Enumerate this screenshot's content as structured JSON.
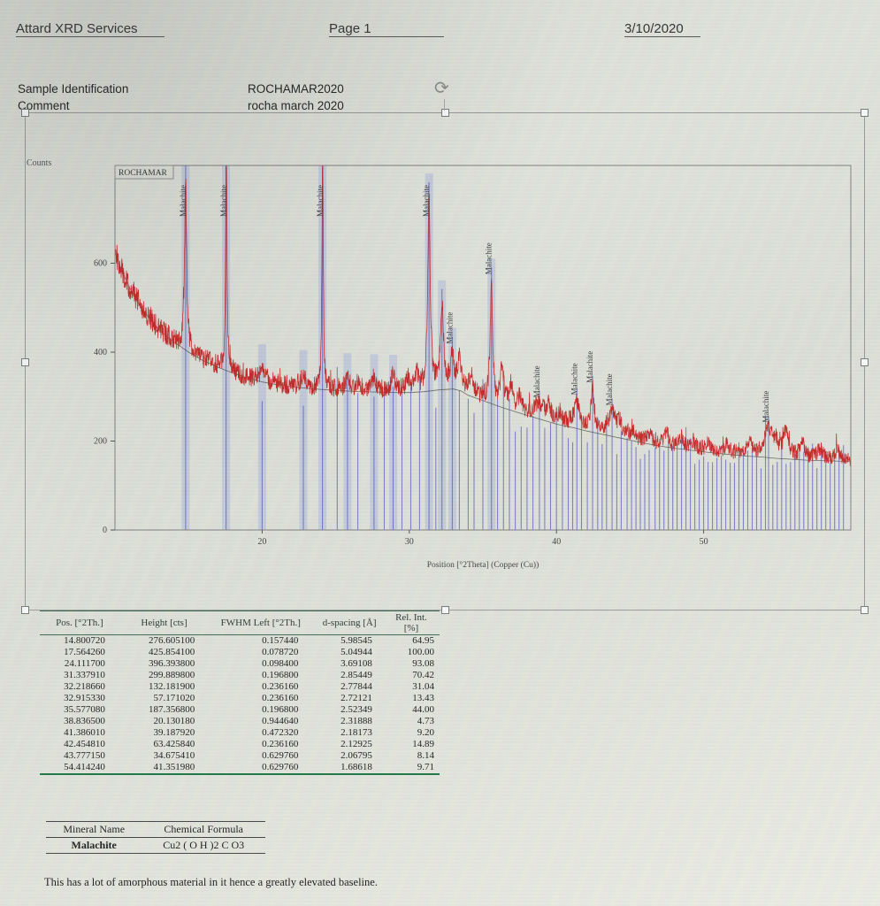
{
  "header": {
    "company": "Attard XRD Services",
    "page": "Page 1",
    "date": "3/10/2020"
  },
  "sample": {
    "id_label": "Sample Identification",
    "id_value": "ROCHAMAR2020",
    "comment_label": "Comment",
    "comment_value": "rocha march 2020"
  },
  "icons": {
    "rotate": "⟳"
  },
  "chart_data": {
    "type": "line",
    "title": "ROCHAMAR",
    "ylabel": "Counts",
    "xlabel": "Position [°2Theta] (Copper (Cu))",
    "x_range": [
      10,
      60
    ],
    "y_range": [
      0,
      820
    ],
    "x_ticks": [
      20,
      30,
      40,
      50
    ],
    "y_ticks": [
      0,
      200,
      400,
      600
    ],
    "series_color": "#c62828",
    "reference_color": "#4d4dbb",
    "band_color": "#a9b6dd",
    "background_curve_color": "#555555",
    "peaks": [
      {
        "pos": 14.80072,
        "height": 276.6051,
        "fwhm": 0.15744,
        "label": "Malachite",
        "labeled": true
      },
      {
        "pos": 17.56426,
        "height": 425.8541,
        "fwhm": 0.07872,
        "label": "Malachite",
        "labeled": true
      },
      {
        "pos": 24.1117,
        "height": 396.3938,
        "fwhm": 0.0984,
        "label": "Malachite",
        "labeled": true
      },
      {
        "pos": 31.33791,
        "height": 299.8898,
        "fwhm": 0.1968,
        "label": "Malachite",
        "labeled": true
      },
      {
        "pos": 32.21866,
        "height": 132.1819,
        "fwhm": 0.23616,
        "label": "Malachite",
        "labeled": false
      },
      {
        "pos": 32.91533,
        "height": 57.17102,
        "fwhm": 0.23616,
        "label": "Malachite",
        "labeled": true
      },
      {
        "pos": 35.57708,
        "height": 187.3568,
        "fwhm": 0.1968,
        "label": "Malachite",
        "labeled": true
      },
      {
        "pos": 38.8365,
        "height": 20.13018,
        "fwhm": 0.94464,
        "label": "Malachite",
        "labeled": true
      },
      {
        "pos": 41.38601,
        "height": 39.18792,
        "fwhm": 0.47232,
        "label": "Malachite",
        "labeled": true
      },
      {
        "pos": 42.45481,
        "height": 63.42584,
        "fwhm": 0.23616,
        "label": "Malachite",
        "labeled": true
      },
      {
        "pos": 43.77715,
        "height": 34.67541,
        "fwhm": 0.62976,
        "label": "Malachite",
        "labeled": true
      },
      {
        "pos": 54.41424,
        "height": 41.35198,
        "fwhm": 0.62976,
        "label": "Malachite",
        "labeled": true
      }
    ],
    "minor_peaks": [
      {
        "pos": 20.0,
        "h": 28,
        "w": 0.3
      },
      {
        "pos": 22.8,
        "h": 20,
        "w": 0.35
      },
      {
        "pos": 25.8,
        "h": 16,
        "w": 0.35
      },
      {
        "pos": 26.5,
        "h": 14,
        "w": 0.3
      },
      {
        "pos": 27.6,
        "h": 22,
        "w": 0.35
      },
      {
        "pos": 28.9,
        "h": 26,
        "w": 0.3
      },
      {
        "pos": 29.9,
        "h": 20,
        "w": 0.3
      },
      {
        "pos": 30.5,
        "h": 25,
        "w": 0.25
      },
      {
        "pos": 33.4,
        "h": 45,
        "w": 0.3
      },
      {
        "pos": 34.2,
        "h": 30,
        "w": 0.35
      },
      {
        "pos": 36.3,
        "h": 60,
        "w": 0.25
      },
      {
        "pos": 36.9,
        "h": 35,
        "w": 0.3
      },
      {
        "pos": 37.5,
        "h": 20,
        "w": 0.3
      },
      {
        "pos": 39.5,
        "h": 18,
        "w": 0.3
      },
      {
        "pos": 40.2,
        "h": 15,
        "w": 0.3
      },
      {
        "pos": 44.3,
        "h": 18,
        "w": 0.3
      },
      {
        "pos": 45.2,
        "h": 15,
        "w": 0.35
      },
      {
        "pos": 46.3,
        "h": 12,
        "w": 0.35
      },
      {
        "pos": 47.5,
        "h": 20,
        "w": 0.35
      },
      {
        "pos": 48.5,
        "h": 15,
        "w": 0.35
      },
      {
        "pos": 49.3,
        "h": 12,
        "w": 0.3
      },
      {
        "pos": 50.3,
        "h": 14,
        "w": 0.35
      },
      {
        "pos": 51.6,
        "h": 12,
        "w": 0.35
      },
      {
        "pos": 53.1,
        "h": 20,
        "w": 0.4
      },
      {
        "pos": 54.9,
        "h": 18,
        "w": 0.35
      },
      {
        "pos": 55.6,
        "h": 40,
        "w": 0.4
      },
      {
        "pos": 56.7,
        "h": 22,
        "w": 0.4
      },
      {
        "pos": 57.9,
        "h": 16,
        "w": 0.4
      },
      {
        "pos": 59.1,
        "h": 14,
        "w": 0.4
      }
    ],
    "baseline_points": [
      [
        10,
        640
      ],
      [
        10.5,
        595
      ],
      [
        11,
        560
      ],
      [
        11.5,
        530
      ],
      [
        12,
        505
      ],
      [
        13,
        465
      ],
      [
        14,
        438
      ],
      [
        15,
        415
      ],
      [
        16,
        396
      ],
      [
        17,
        381
      ],
      [
        18,
        368
      ],
      [
        19,
        357
      ],
      [
        20,
        348
      ],
      [
        21,
        342
      ],
      [
        22,
        337
      ],
      [
        23,
        334
      ],
      [
        24,
        331
      ],
      [
        25,
        329
      ],
      [
        26,
        327
      ],
      [
        27,
        326
      ],
      [
        28,
        325
      ],
      [
        29,
        324
      ],
      [
        30,
        324
      ],
      [
        31,
        326
      ],
      [
        32,
        330
      ],
      [
        33,
        332
      ],
      [
        33.5,
        328
      ],
      [
        34,
        318
      ],
      [
        35,
        306
      ],
      [
        36,
        294
      ],
      [
        37,
        283
      ],
      [
        38,
        273
      ],
      [
        39,
        263
      ],
      [
        40,
        253
      ],
      [
        41,
        246
      ],
      [
        42,
        238
      ],
      [
        43,
        231
      ],
      [
        44,
        224
      ],
      [
        45,
        217
      ],
      [
        46,
        210
      ],
      [
        47,
        204
      ],
      [
        48,
        199
      ],
      [
        49,
        195
      ],
      [
        50,
        191
      ],
      [
        51,
        187
      ],
      [
        52,
        184
      ],
      [
        53,
        181
      ],
      [
        54,
        179
      ],
      [
        55,
        176
      ],
      [
        56,
        174
      ],
      [
        57,
        172
      ],
      [
        58,
        171
      ],
      [
        59,
        170
      ],
      [
        60,
        169
      ]
    ],
    "reference_lines": [
      14.8,
      17.55,
      20.0,
      22.8,
      24.1,
      25.1,
      25.8,
      26.5,
      27.6,
      28.3,
      28.9,
      29.5,
      30.1,
      30.7,
      31.34,
      31.8,
      32.22,
      32.92,
      33.4,
      34.0,
      34.4,
      35.0,
      35.58,
      36.0,
      36.4,
      36.8,
      37.2,
      37.6,
      38.0,
      38.4,
      38.84,
      39.2,
      39.6,
      40.0,
      40.4,
      40.8,
      41.1,
      41.39,
      41.7,
      42.1,
      42.45,
      42.8,
      43.1,
      43.4,
      43.78,
      44.1,
      44.4,
      44.8,
      45.1,
      45.4,
      45.7,
      46.0,
      46.3,
      46.7,
      47.0,
      47.3,
      47.6,
      47.9,
      48.2,
      48.5,
      48.8,
      49.1,
      49.4,
      49.7,
      50.0,
      50.3,
      50.6,
      50.9,
      51.2,
      51.5,
      51.8,
      52.1,
      52.4,
      52.7,
      53.0,
      53.3,
      53.6,
      53.9,
      54.2,
      54.41,
      54.7,
      55.0,
      55.3,
      55.6,
      55.9,
      56.2,
      56.5,
      56.8,
      57.1,
      57.4,
      57.7,
      58.0,
      58.3,
      58.6,
      58.9,
      59.2,
      59.5
    ],
    "bands": [
      14.8,
      17.55,
      20.0,
      22.8,
      24.1,
      25.8,
      27.6,
      28.9,
      31.34,
      32.22,
      32.92,
      35.58
    ]
  },
  "peak_table": {
    "columns": [
      "Pos. [°2Th.]",
      "Height [cts]",
      "FWHM Left [°2Th.]",
      "d-spacing [Å]",
      "Rel. Int. [%]"
    ],
    "rows": [
      [
        "14.800720",
        "276.605100",
        "0.157440",
        "5.98545",
        "64.95"
      ],
      [
        "17.564260",
        "425.854100",
        "0.078720",
        "5.04944",
        "100.00"
      ],
      [
        "24.111700",
        "396.393800",
        "0.098400",
        "3.69108",
        "93.08"
      ],
      [
        "31.337910",
        "299.889800",
        "0.196800",
        "2.85449",
        "70.42"
      ],
      [
        "32.218660",
        "132.181900",
        "0.236160",
        "2.77844",
        "31.04"
      ],
      [
        "32.915330",
        "57.171020",
        "0.236160",
        "2.72121",
        "13.43"
      ],
      [
        "35.577080",
        "187.356800",
        "0.196800",
        "2.52349",
        "44.00"
      ],
      [
        "38.836500",
        "20.130180",
        "0.944640",
        "2.31888",
        "4.73"
      ],
      [
        "41.386010",
        "39.187920",
        "0.472320",
        "2.18173",
        "9.20"
      ],
      [
        "42.454810",
        "63.425840",
        "0.236160",
        "2.12925",
        "14.89"
      ],
      [
        "43.777150",
        "34.675410",
        "0.629760",
        "2.06795",
        "8.14"
      ],
      [
        "54.414240",
        "41.351980",
        "0.629760",
        "1.68618",
        "9.71"
      ]
    ]
  },
  "mineral_table": {
    "columns": [
      "Mineral Name",
      "Chemical Formula"
    ],
    "rows": [
      [
        "Malachite",
        "Cu2 ( O H )2 C O3"
      ]
    ]
  },
  "footer_note": "This has a lot of amorphous material in it hence a greatly elevated baseline."
}
